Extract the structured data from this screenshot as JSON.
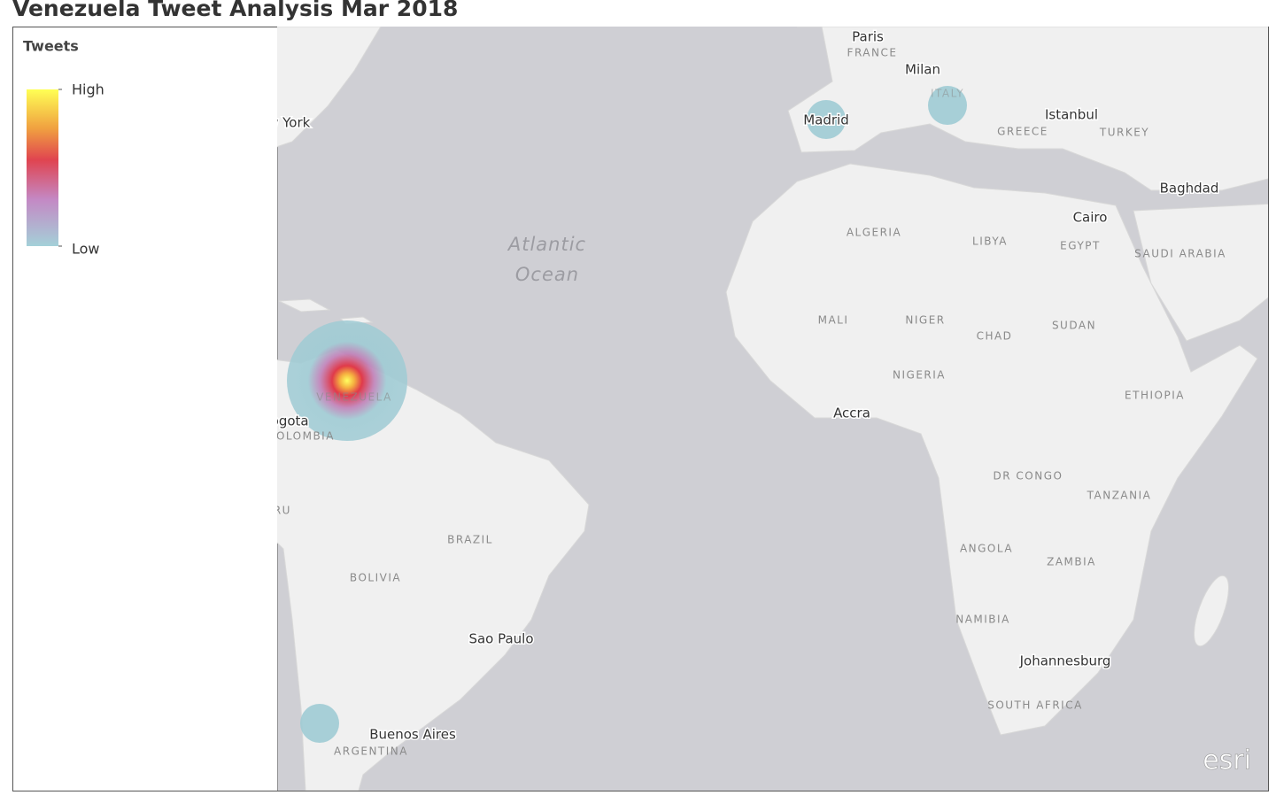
{
  "header": {
    "title": "Venezuela Tweet Analysis Mar 2018"
  },
  "legend": {
    "title": "Tweets",
    "high": "High",
    "low": "Low"
  },
  "map": {
    "ocean_labels": [
      "Atlantic",
      "Ocean"
    ],
    "labels": [
      "Paris",
      "FRANCE",
      "Milan",
      "ITALY",
      "Madrid",
      "Istanbul",
      "GREECE",
      "TURKEY",
      "Baghdad",
      "Cairo",
      "EGYPT",
      "SAUDI ARABIA",
      "ALGERIA",
      "LIBYA",
      "MALI",
      "NIGER",
      "CHAD",
      "SUDAN",
      "NIGERIA",
      "ETHIOPIA",
      "Accra",
      "DR CONGO",
      "TANZANIA",
      "ANGOLA",
      "ZAMBIA",
      "NAMIBIA",
      "Johannesburg",
      "SOUTH AFRICA",
      "BRAZIL",
      "BOLIVIA",
      "Sao Paulo",
      "Buenos Aires",
      "ARGENTINA",
      "VENEZUELA",
      "Bogota",
      "COLOMBIA",
      "PERU",
      "New York"
    ],
    "logo": "esri"
  }
}
